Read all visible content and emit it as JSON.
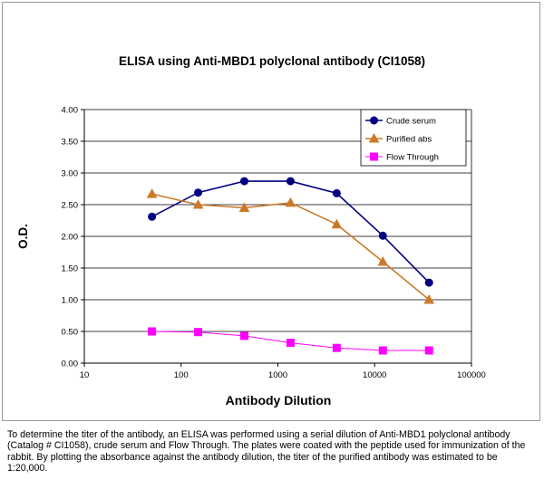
{
  "chart_data": {
    "type": "line",
    "title": "ELISA using Anti-MBD1 polyclonal antibody (CI1058)",
    "xlabel": "Antibody Dilution",
    "ylabel": "O.D.",
    "x_scale": "log",
    "xlim": [
      10,
      100000
    ],
    "ylim": [
      0,
      4
    ],
    "x_ticks": [
      "10",
      "100",
      "1000",
      "10000",
      "100000"
    ],
    "y_ticks": [
      "0.00",
      "0.50",
      "1.00",
      "1.50",
      "2.00",
      "2.50",
      "3.00",
      "3.50",
      "4.00"
    ],
    "grid": "horizontal",
    "legend_position": "top-right",
    "x": [
      50,
      150,
      450,
      1350,
      4050,
      12150,
      36450
    ],
    "series": [
      {
        "name": "Crude serum",
        "color": "#000080",
        "marker": "circle",
        "values": [
          2.31,
          2.69,
          2.87,
          2.87,
          2.68,
          2.01,
          1.27
        ]
      },
      {
        "name": "Purified abs",
        "color": "#CC7A29",
        "marker": "triangle",
        "values": [
          2.67,
          2.5,
          2.45,
          2.53,
          2.19,
          1.6,
          1.0
        ]
      },
      {
        "name": "Flow Through",
        "color": "#FF00FF",
        "marker": "square",
        "values": [
          0.5,
          0.49,
          0.43,
          0.32,
          0.24,
          0.2,
          0.2
        ]
      }
    ]
  },
  "caption": "To determine the titer of the antibody, an ELISA was performed using a serial dilution of Anti-MBD1 polyclonal antibody (Catalog # CI1058), crude serum and Flow Through. The plates were coated with the peptide used for immunization of the rabbit. By plotting the absorbance against the antibody dilution, the titer of the purified antibody was estimated to be 1:20,000."
}
